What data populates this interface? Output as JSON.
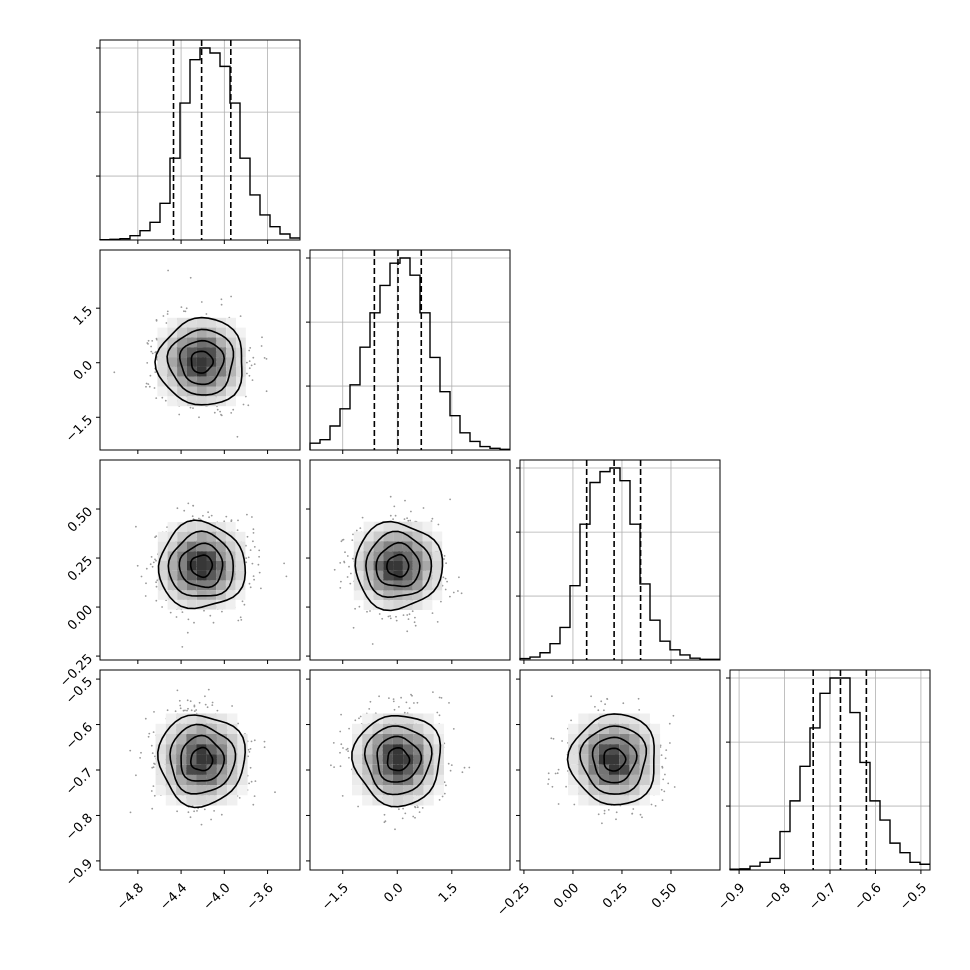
{
  "chart_data": {
    "type": "corner",
    "grid": true,
    "params": [
      {
        "range": [
          -5.15,
          -3.3
        ],
        "ticks": [
          -4.8,
          -4.4,
          -4.0,
          -3.6
        ],
        "tick_labels": [
          "−4.8",
          "−4.4",
          "−4.0",
          "−3.6"
        ],
        "quantiles": [
          -4.47,
          -4.21,
          -3.94
        ],
        "hist_edges_start": -5.15,
        "hist_bin_width": 0.0925,
        "hist_counts": [
          1,
          2,
          4,
          13,
          28,
          53,
          110,
          245,
          410,
          540,
          575,
          560,
          520,
          410,
          245,
          135,
          75,
          40,
          18,
          6
        ]
      },
      {
        "range": [
          -2.4,
          3.1
        ],
        "ticks": [
          -1.5,
          0.0,
          1.5
        ],
        "tick_labels": [
          "−1.5",
          "0.0",
          "1.5"
        ],
        "quantiles": [
          -0.63,
          0.02,
          0.66
        ],
        "hist_edges_start": -2.4,
        "hist_bin_width": 0.275,
        "hist_counts": [
          20,
          30,
          70,
          120,
          190,
          300,
          400,
          480,
          545,
          560,
          510,
          400,
          270,
          170,
          100,
          50,
          25,
          10,
          5,
          2
        ]
      },
      {
        "range": [
          -0.27,
          0.75
        ],
        "ticks": [
          -0.25,
          0.0,
          0.25,
          0.5
        ],
        "tick_labels": [
          "−0.25",
          "0.00",
          "0.25",
          "0.50"
        ],
        "quantiles": [
          0.07,
          0.21,
          0.345
        ],
        "hist_edges_start": -0.27,
        "hist_bin_width": 0.051,
        "hist_counts": [
          4,
          8,
          20,
          45,
          90,
          205,
          375,
          490,
          520,
          530,
          495,
          375,
          210,
          110,
          52,
          28,
          14,
          5,
          2,
          2
        ]
      },
      {
        "range": [
          -0.92,
          -0.48
        ],
        "ticks": [
          -0.9,
          -0.8,
          -0.7,
          -0.6,
          -0.5
        ],
        "tick_labels": [
          "−0.9",
          "−0.8",
          "−0.7",
          "−0.6",
          "−0.5"
        ],
        "quantiles": [
          -0.737,
          -0.677,
          -0.62
        ],
        "hist_edges_start": -0.92,
        "hist_bin_width": 0.022,
        "hist_counts": [
          2,
          3,
          10,
          20,
          30,
          100,
          180,
          270,
          370,
          460,
          500,
          500,
          410,
          280,
          180,
          130,
          70,
          45,
          20,
          15
        ]
      }
    ],
    "means": [
      -4.21,
      0.02,
      0.21,
      -0.677
    ],
    "sigmas": [
      0.2,
      0.6,
      0.11,
      0.05
    ],
    "contour_levels_sigma": [
      0.5,
      1.0,
      1.5,
      2.0
    ]
  }
}
